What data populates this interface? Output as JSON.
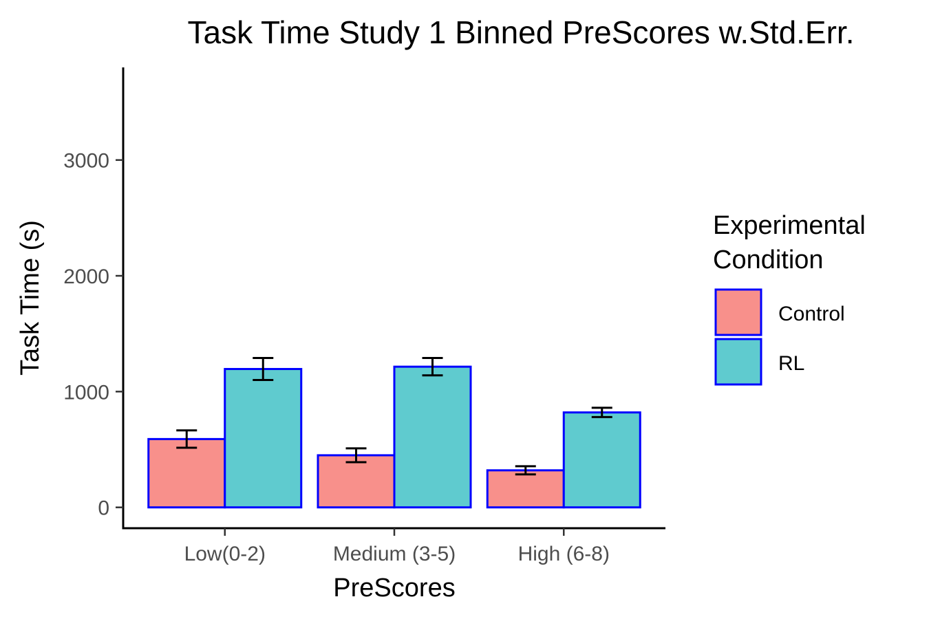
{
  "chart_data": {
    "type": "bar",
    "title": "Task Time Study 1 Binned PreScores w.Std.Err.",
    "xlabel": "PreScores",
    "ylabel": "Task Time (s)",
    "categories": [
      "Low(0-2)",
      "Medium (3-5)",
      "High (6-8)"
    ],
    "ylim": [
      -180,
      3800
    ],
    "yticks": [
      0,
      1000,
      2000,
      3000
    ],
    "ytick_labels": [
      "0",
      "1000",
      "2000",
      "3000"
    ],
    "grid": false,
    "legend": {
      "title_lines": [
        "Experimental",
        "Condition"
      ],
      "placement": "right"
    },
    "series": [
      {
        "name": "Control",
        "color": "#F8908B",
        "values": [
          590,
          450,
          320
        ],
        "errors": [
          75,
          60,
          35
        ]
      },
      {
        "name": "RL",
        "color": "#5FCBCF",
        "values": [
          1195,
          1215,
          820
        ],
        "errors": [
          95,
          75,
          40
        ]
      }
    ],
    "bar_edge_color": "#0000FF",
    "errorbar_color": "#000000"
  }
}
